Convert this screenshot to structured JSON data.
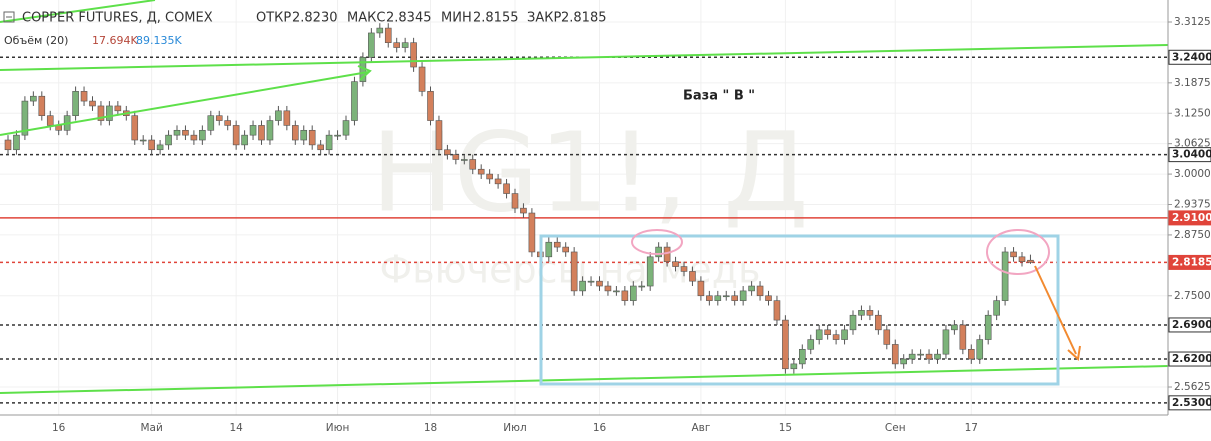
{
  "chart_data": {
    "type": "candlestick",
    "header": {
      "title": "COPPER FUTURES, Д, COMEX",
      "open_label": "ОТКР",
      "open": "2.8230",
      "high_label": "МАКС",
      "high": "2.8345",
      "low_label": "МИН",
      "low": "2.8155",
      "close_label": "ЗАКР",
      "close": "2.8185"
    },
    "volume_header": {
      "title": "Объём (20)",
      "value": "17.694K",
      "average": "89.135K"
    },
    "watermark": {
      "symbol": "HG1!, Д",
      "description": "Фьючерсы на медь"
    },
    "annotations": [
      "База  \" В \""
    ],
    "categories": [
      null,
      null,
      null,
      null,
      null,
      null,
      "16",
      null,
      null,
      null,
      null,
      null,
      null,
      null,
      null,
      null,
      null,
      "Май",
      null,
      null,
      null,
      null,
      null,
      null,
      null,
      null,
      null,
      "14",
      null,
      null,
      null,
      null,
      null,
      null,
      null,
      null,
      null,
      null,
      null,
      "Июн",
      null,
      null,
      null,
      null,
      null,
      null,
      null,
      null,
      null,
      null,
      "18",
      null,
      null,
      null,
      null,
      null,
      null,
      null,
      null,
      null,
      "Июл",
      null,
      null,
      null,
      null,
      null,
      null,
      null,
      null,
      null,
      "16",
      null,
      null,
      null,
      null,
      null,
      null,
      null,
      null,
      null,
      null,
      null,
      "Авг",
      null,
      null,
      null,
      null,
      null,
      null,
      null,
      null,
      null,
      "15",
      null,
      null,
      null,
      null,
      null,
      null,
      null,
      null,
      null,
      null,
      null,
      null,
      "Сен",
      null,
      null,
      null,
      null,
      null,
      null,
      null,
      null,
      "17",
      null,
      null,
      null,
      null,
      null,
      null,
      null
    ],
    "open": [
      3.07,
      3.05,
      3.08,
      3.15,
      3.16,
      3.12,
      3.1,
      3.09,
      3.12,
      3.17,
      3.15,
      3.14,
      3.11,
      3.14,
      3.13,
      3.12,
      3.07,
      3.07,
      3.05,
      3.06,
      3.08,
      3.09,
      3.08,
      3.07,
      3.09,
      3.12,
      3.11,
      3.1,
      3.06,
      3.08,
      3.1,
      3.07,
      3.11,
      3.13,
      3.1,
      3.07,
      3.09,
      3.06,
      3.05,
      3.08,
      3.08,
      3.11,
      3.19,
      3.24,
      3.29,
      3.3,
      3.27,
      3.26,
      3.27,
      3.22,
      3.17,
      3.11,
      3.05,
      3.04,
      3.03,
      3.03,
      3.01,
      3.0,
      2.99,
      2.98,
      2.96,
      2.93,
      2.92,
      2.84,
      2.83,
      2.86,
      2.85,
      2.84,
      2.76,
      2.78,
      2.78,
      2.77,
      2.76,
      2.76,
      2.74,
      2.77,
      2.77,
      2.83,
      2.85,
      2.82,
      2.81,
      2.8,
      2.78,
      2.75,
      2.74,
      2.75,
      2.75,
      2.74,
      2.76,
      2.77,
      2.75,
      2.74,
      2.7,
      2.6,
      2.61,
      2.64,
      2.66,
      2.68,
      2.67,
      2.66,
      2.68,
      2.71,
      2.72,
      2.71,
      2.68,
      2.65,
      2.61,
      2.62,
      2.63,
      2.63,
      2.62,
      2.63,
      2.68,
      2.69,
      2.64,
      2.62,
      2.66,
      2.71,
      2.74,
      2.84,
      2.83,
      2.823
    ],
    "high": [
      3.08,
      3.09,
      3.16,
      3.17,
      3.17,
      3.13,
      3.11,
      3.13,
      3.18,
      3.18,
      3.16,
      3.15,
      3.15,
      3.15,
      3.14,
      3.13,
      3.08,
      3.08,
      3.07,
      3.09,
      3.1,
      3.1,
      3.09,
      3.1,
      3.13,
      3.13,
      3.12,
      3.11,
      3.09,
      3.11,
      3.11,
      3.12,
      3.14,
      3.14,
      3.11,
      3.1,
      3.1,
      3.07,
      3.09,
      3.09,
      3.12,
      3.2,
      3.25,
      3.3,
      3.31,
      3.31,
      3.28,
      3.28,
      3.28,
      3.23,
      3.18,
      3.12,
      3.06,
      3.05,
      3.04,
      3.04,
      3.02,
      3.01,
      3.0,
      2.99,
      2.97,
      2.94,
      2.93,
      2.85,
      2.87,
      2.87,
      2.86,
      2.85,
      2.79,
      2.79,
      2.79,
      2.78,
      2.77,
      2.77,
      2.78,
      2.78,
      2.84,
      2.86,
      2.86,
      2.83,
      2.82,
      2.81,
      2.79,
      2.76,
      2.76,
      2.76,
      2.76,
      2.77,
      2.78,
      2.78,
      2.76,
      2.75,
      2.71,
      2.62,
      2.65,
      2.67,
      2.69,
      2.69,
      2.68,
      2.69,
      2.72,
      2.73,
      2.73,
      2.72,
      2.69,
      2.66,
      2.63,
      2.64,
      2.64,
      2.64,
      2.64,
      2.69,
      2.7,
      2.7,
      2.65,
      2.67,
      2.72,
      2.75,
      2.85,
      2.85,
      2.84,
      2.8345
    ],
    "low": [
      3.04,
      3.04,
      3.07,
      3.14,
      3.11,
      3.09,
      3.08,
      3.08,
      3.11,
      3.14,
      3.13,
      3.1,
      3.1,
      3.12,
      3.11,
      3.06,
      3.06,
      3.04,
      3.04,
      3.05,
      3.07,
      3.07,
      3.06,
      3.06,
      3.08,
      3.1,
      3.09,
      3.05,
      3.05,
      3.07,
      3.06,
      3.06,
      3.1,
      3.09,
      3.06,
      3.06,
      3.05,
      3.04,
      3.04,
      3.07,
      3.07,
      3.1,
      3.18,
      3.23,
      3.28,
      3.26,
      3.25,
      3.25,
      3.21,
      3.16,
      3.1,
      3.04,
      3.03,
      3.02,
      3.02,
      3.0,
      2.99,
      2.98,
      2.97,
      2.95,
      2.92,
      2.91,
      2.83,
      2.82,
      2.82,
      2.84,
      2.83,
      2.75,
      2.75,
      2.77,
      2.76,
      2.75,
      2.75,
      2.73,
      2.73,
      2.76,
      2.76,
      2.82,
      2.81,
      2.8,
      2.79,
      2.77,
      2.74,
      2.73,
      2.73,
      2.74,
      2.73,
      2.73,
      2.75,
      2.74,
      2.73,
      2.69,
      2.59,
      2.59,
      2.6,
      2.63,
      2.65,
      2.66,
      2.65,
      2.65,
      2.67,
      2.7,
      2.7,
      2.67,
      2.64,
      2.6,
      2.6,
      2.61,
      2.62,
      2.61,
      2.61,
      2.62,
      2.67,
      2.63,
      2.61,
      2.61,
      2.65,
      2.7,
      2.73,
      2.82,
      2.81,
      2.8155
    ],
    "close": [
      3.05,
      3.08,
      3.15,
      3.16,
      3.12,
      3.1,
      3.09,
      3.12,
      3.17,
      3.15,
      3.14,
      3.11,
      3.14,
      3.13,
      3.12,
      3.07,
      3.07,
      3.05,
      3.06,
      3.08,
      3.09,
      3.08,
      3.07,
      3.09,
      3.12,
      3.11,
      3.1,
      3.06,
      3.08,
      3.1,
      3.07,
      3.11,
      3.13,
      3.1,
      3.07,
      3.09,
      3.06,
      3.05,
      3.08,
      3.08,
      3.11,
      3.19,
      3.24,
      3.29,
      3.3,
      3.27,
      3.26,
      3.27,
      3.22,
      3.17,
      3.11,
      3.05,
      3.04,
      3.03,
      3.03,
      3.01,
      3.0,
      2.99,
      2.98,
      2.96,
      2.93,
      2.92,
      2.84,
      2.83,
      2.86,
      2.85,
      2.84,
      2.76,
      2.78,
      2.78,
      2.77,
      2.76,
      2.76,
      2.74,
      2.77,
      2.77,
      2.83,
      2.85,
      2.82,
      2.81,
      2.8,
      2.78,
      2.75,
      2.74,
      2.75,
      2.75,
      2.74,
      2.76,
      2.77,
      2.75,
      2.74,
      2.7,
      2.6,
      2.61,
      2.64,
      2.66,
      2.68,
      2.67,
      2.66,
      2.68,
      2.71,
      2.72,
      2.71,
      2.68,
      2.65,
      2.61,
      2.62,
      2.63,
      2.63,
      2.62,
      2.63,
      2.68,
      2.69,
      2.64,
      2.62,
      2.66,
      2.71,
      2.74,
      2.84,
      2.83,
      2.82,
      2.8185
    ],
    "up_color": "#7cb37a",
    "down_color": "#d3805c",
    "ylim": [
      2.505,
      3.3577
    ],
    "yticks": [
      3.3125,
      3.1875,
      {
        "value": 3.125,
        "label": "3.1250"
      },
      3.0625,
      {
        "value": 3,
        "label": "3.0000"
      },
      2.9375,
      {
        "value": 2.875,
        "label": "2.8750"
      },
      {
        "value": 2.75,
        "label": "2.7500"
      },
      2.5625
    ],
    "grid": true,
    "levels": [
      {
        "value": 3.24,
        "label": "3.2400",
        "color": "#333333",
        "dashed": true
      },
      {
        "value": 3.04,
        "label": "3.0400",
        "color": "#333333",
        "dashed": true
      },
      {
        "value": 2.91,
        "label": "2.9100",
        "color": "#e0443a",
        "dashed": false
      },
      {
        "value": 2.8185,
        "label": "2.8185",
        "color": "#e0443a",
        "dashed": true
      },
      {
        "value": 2.69,
        "label": "2.6900",
        "color": "#333333",
        "dashed": true
      },
      {
        "value": 2.62,
        "label": "2.6200",
        "color": "#333333",
        "dashed": true
      },
      {
        "value": 2.53,
        "label": "2.5300",
        "color": "#333333",
        "dashed": true
      }
    ]
  }
}
